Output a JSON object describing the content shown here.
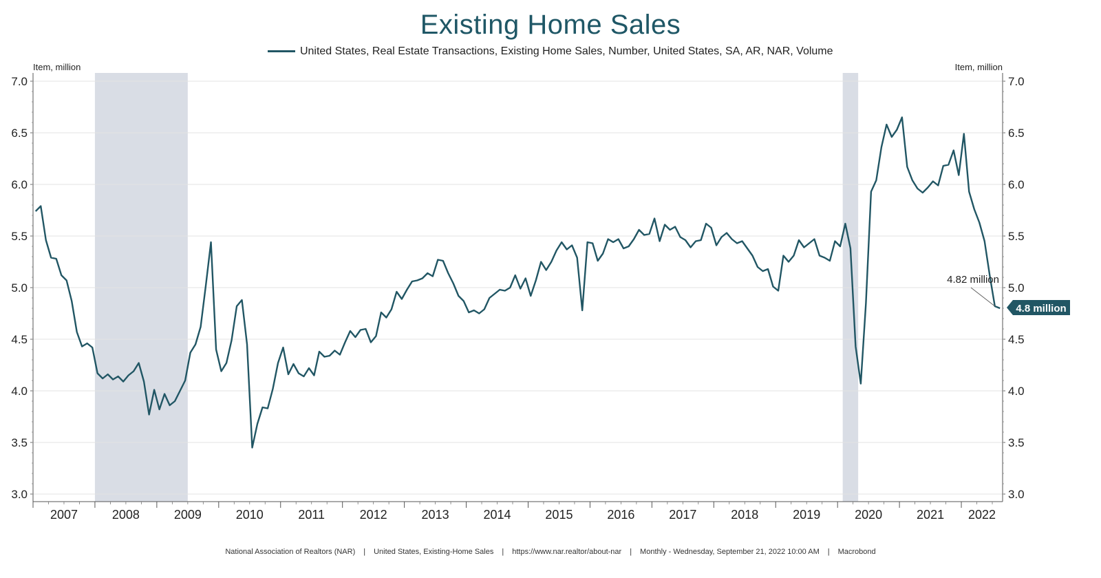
{
  "chart_data": {
    "type": "line",
    "title": "Existing Home Sales",
    "legend": "United States, Real Estate Transactions, Existing Home Sales, Number, United States, SA, AR, NAR, Volume",
    "legend_position": "top-center",
    "ylabel_left": "Item, million",
    "ylabel_right": "Item, million",
    "ylim": [
      3.0,
      7.0
    ],
    "y_ticks": [
      "3.0",
      "3.5",
      "4.0",
      "4.5",
      "5.0",
      "5.5",
      "6.0",
      "6.5",
      "7.0"
    ],
    "x_labels": [
      "2007",
      "2008",
      "2009",
      "2010",
      "2011",
      "2012",
      "2013",
      "2014",
      "2015",
      "2016",
      "2017",
      "2018",
      "2019",
      "2020",
      "2021",
      "2022"
    ],
    "x_start": "2007-01",
    "x_end": "2022-08",
    "grid": true,
    "line_color": "#215664",
    "recession_color": "#d9dde5",
    "recessions": [
      {
        "start": "2008-01",
        "end": "2009-06"
      },
      {
        "start": "2020-02",
        "end": "2020-04"
      }
    ],
    "annotation": "4.82 million",
    "last_value_label": "4.8 million",
    "series": [
      {
        "name": "United States, Real Estate Transactions, Existing Home Sales, Number, United States, SA, AR, NAR, Volume",
        "values": [
          5.74,
          5.79,
          5.46,
          5.29,
          5.28,
          5.12,
          5.07,
          4.87,
          4.57,
          4.43,
          4.46,
          4.42,
          4.17,
          4.12,
          4.16,
          4.11,
          4.14,
          4.09,
          4.15,
          4.19,
          4.27,
          4.09,
          3.77,
          4.01,
          3.82,
          3.97,
          3.86,
          3.9,
          4.0,
          4.1,
          4.37,
          4.45,
          4.62,
          5.02,
          5.44,
          4.4,
          4.19,
          4.27,
          4.49,
          4.82,
          4.88,
          4.45,
          3.45,
          3.68,
          3.84,
          3.83,
          4.02,
          4.27,
          4.42,
          4.16,
          4.26,
          4.17,
          4.14,
          4.22,
          4.15,
          4.38,
          4.33,
          4.34,
          4.39,
          4.35,
          4.47,
          4.58,
          4.52,
          4.59,
          4.6,
          4.47,
          4.53,
          4.76,
          4.71,
          4.79,
          4.96,
          4.89,
          4.98,
          5.06,
          5.07,
          5.09,
          5.14,
          5.11,
          5.27,
          5.26,
          5.14,
          5.04,
          4.92,
          4.87,
          4.76,
          4.78,
          4.75,
          4.79,
          4.9,
          4.94,
          4.98,
          4.97,
          5.0,
          5.12,
          4.99,
          5.09,
          4.92,
          5.07,
          5.25,
          5.17,
          5.25,
          5.36,
          5.44,
          5.37,
          5.41,
          5.29,
          4.78,
          5.44,
          5.43,
          5.26,
          5.33,
          5.47,
          5.44,
          5.47,
          5.38,
          5.4,
          5.47,
          5.56,
          5.51,
          5.52,
          5.67,
          5.45,
          5.61,
          5.56,
          5.59,
          5.49,
          5.46,
          5.39,
          5.45,
          5.46,
          5.62,
          5.58,
          5.41,
          5.49,
          5.53,
          5.47,
          5.43,
          5.45,
          5.38,
          5.31,
          5.2,
          5.16,
          5.18,
          5.01,
          4.97,
          5.31,
          5.25,
          5.31,
          5.46,
          5.39,
          5.43,
          5.47,
          5.31,
          5.29,
          5.26,
          5.45,
          5.4,
          5.62,
          5.38,
          4.43,
          4.07,
          4.85,
          5.93,
          6.04,
          6.36,
          6.58,
          6.46,
          6.53,
          6.65,
          6.17,
          6.04,
          5.96,
          5.92,
          5.97,
          6.03,
          5.99,
          6.18,
          6.19,
          6.33,
          6.09,
          6.49,
          5.93,
          5.76,
          5.63,
          5.45,
          5.12,
          4.82,
          4.8
        ]
      }
    ]
  },
  "footer": {
    "items": [
      "National Association of Realtors (NAR)",
      "United States, Existing-Home Sales",
      "https://www.nar.realtor/about-nar",
      "Monthly - Wednesday, September 21, 2022 10:00 AM",
      "Macrobond"
    ],
    "separator": "|"
  }
}
